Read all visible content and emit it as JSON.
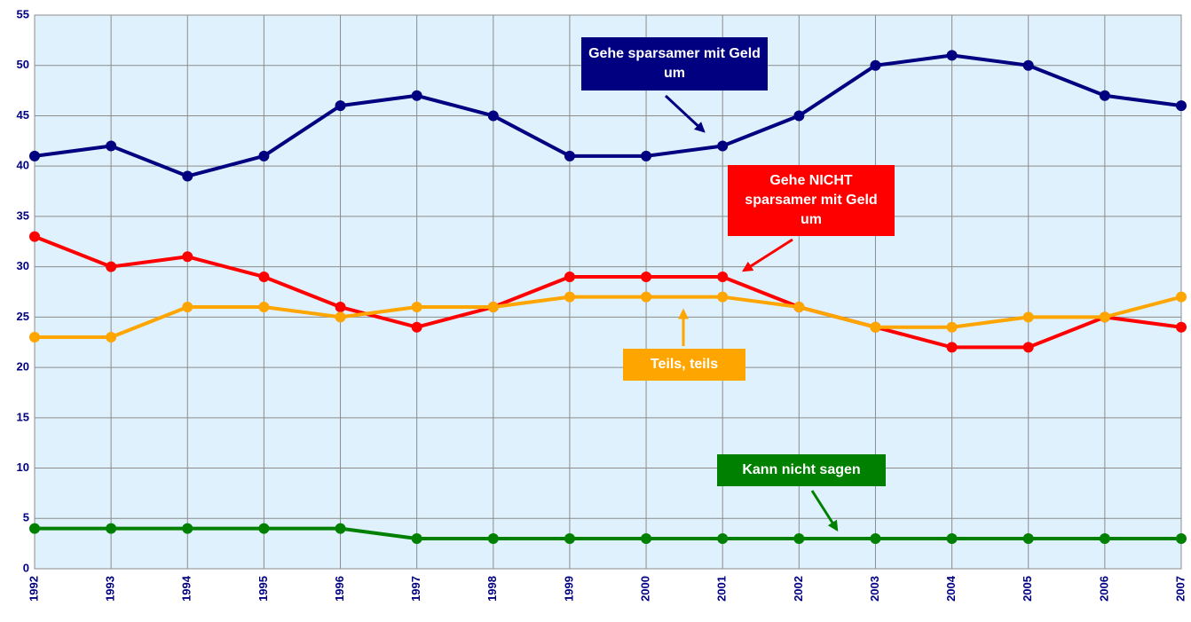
{
  "chart_data": {
    "type": "line",
    "categories": [
      "1992",
      "1993",
      "1994",
      "1995",
      "1996",
      "1997",
      "1998",
      "1999",
      "2000",
      "2001",
      "2002",
      "2003",
      "2004",
      "2005",
      "2006",
      "2007"
    ],
    "series": [
      {
        "name": "Gehe sparsamer mit Geld um",
        "color": "#000080",
        "values": [
          41,
          42,
          39,
          41,
          46,
          47,
          45,
          41,
          41,
          42,
          45,
          50,
          51,
          50,
          47,
          46
        ]
      },
      {
        "name": "Gehe NICHT sparsamer mit Geld um",
        "color": "#ff0000",
        "values": [
          33,
          30,
          31,
          29,
          26,
          24,
          26,
          29,
          29,
          29,
          26,
          24,
          22,
          22,
          25,
          24
        ]
      },
      {
        "name": "Teils, teils",
        "color": "#ffa500",
        "values": [
          23,
          23,
          26,
          26,
          25,
          26,
          26,
          27,
          27,
          27,
          26,
          24,
          24,
          25,
          25,
          27
        ]
      },
      {
        "name": "Kann nicht sagen",
        "color": "#008000",
        "values": [
          4,
          4,
          4,
          4,
          4,
          3,
          3,
          3,
          3,
          3,
          3,
          3,
          3,
          3,
          3,
          3
        ]
      }
    ],
    "ylim": [
      0,
      55
    ],
    "yticks": [
      0,
      5,
      10,
      15,
      20,
      25,
      30,
      35,
      40,
      45,
      50,
      55
    ],
    "grid": true
  }
}
